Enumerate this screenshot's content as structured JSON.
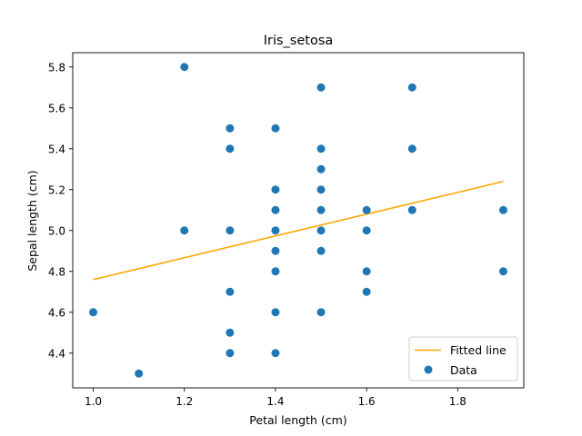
{
  "chart_data": {
    "type": "scatter",
    "title": "Iris_setosa",
    "xlabel": "Petal length (cm)",
    "ylabel": "Sepal length (cm)",
    "xlim": [
      0.955,
      1.945
    ],
    "ylim": [
      4.23,
      5.87
    ],
    "xticks": [
      1.0,
      1.2,
      1.4,
      1.6,
      1.8
    ],
    "xtick_labels": [
      "1.0",
      "1.2",
      "1.4",
      "1.6",
      "1.8"
    ],
    "yticks": [
      4.4,
      4.6,
      4.8,
      5.0,
      5.2,
      5.4,
      5.6,
      5.8
    ],
    "ytick_labels": [
      "4.4",
      "4.6",
      "4.8",
      "5.0",
      "5.2",
      "5.4",
      "5.6",
      "5.8"
    ],
    "grid": false,
    "legend_position": "lower-right",
    "series": [
      {
        "name": "Data",
        "kind": "scatter",
        "color": "#1f77b4",
        "points": [
          [
            1.0,
            4.6
          ],
          [
            1.1,
            4.3
          ],
          [
            1.2,
            5.8
          ],
          [
            1.2,
            5.0
          ],
          [
            1.3,
            5.5
          ],
          [
            1.3,
            5.4
          ],
          [
            1.3,
            5.0
          ],
          [
            1.3,
            4.7
          ],
          [
            1.3,
            4.5
          ],
          [
            1.3,
            4.4
          ],
          [
            1.4,
            5.5
          ],
          [
            1.4,
            5.2
          ],
          [
            1.4,
            5.1
          ],
          [
            1.4,
            5.0
          ],
          [
            1.4,
            4.9
          ],
          [
            1.4,
            4.8
          ],
          [
            1.4,
            4.6
          ],
          [
            1.4,
            4.4
          ],
          [
            1.5,
            5.7
          ],
          [
            1.5,
            5.4
          ],
          [
            1.5,
            5.3
          ],
          [
            1.5,
            5.2
          ],
          [
            1.5,
            5.1
          ],
          [
            1.5,
            5.0
          ],
          [
            1.5,
            4.9
          ],
          [
            1.5,
            4.6
          ],
          [
            1.6,
            5.1
          ],
          [
            1.6,
            5.0
          ],
          [
            1.6,
            4.8
          ],
          [
            1.6,
            4.7
          ],
          [
            1.7,
            5.7
          ],
          [
            1.7,
            5.4
          ],
          [
            1.7,
            5.1
          ],
          [
            1.9,
            5.1
          ],
          [
            1.9,
            4.8
          ]
        ]
      },
      {
        "name": "Fitted line",
        "kind": "line",
        "color": "#ffa500",
        "points": [
          [
            1.0,
            4.76
          ],
          [
            1.9,
            5.24
          ]
        ]
      }
    ]
  }
}
